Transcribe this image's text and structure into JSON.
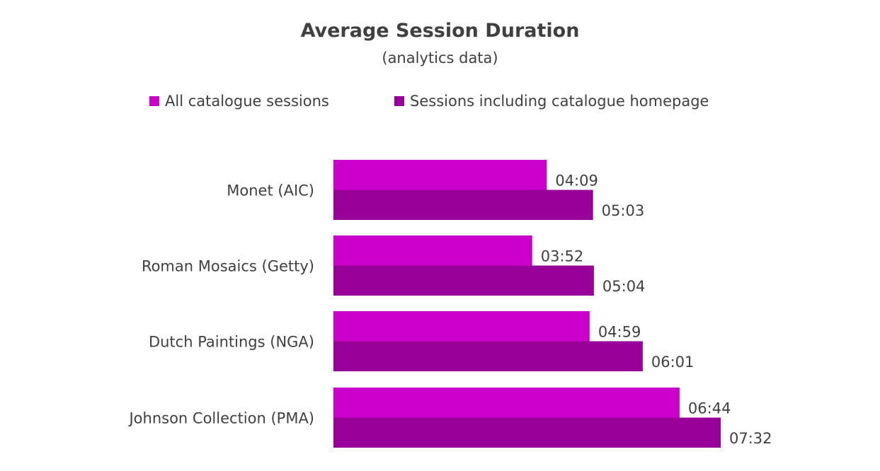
{
  "chart_data": {
    "type": "bar",
    "orientation": "horizontal",
    "title": "Average Session Duration",
    "subtitle": "(analytics data)",
    "categories": [
      "Monet (AIC)",
      "Roman Mosaics (Getty)",
      "Dutch Paintings (NGA)",
      "Johnson Collection (PMA)"
    ],
    "series": [
      {
        "name": "All catalogue sessions",
        "color": "#CC00CC",
        "values_seconds": [
          249,
          232,
          299,
          404
        ],
        "labels": [
          "04:09",
          "03:52",
          "04:59",
          "06:44"
        ]
      },
      {
        "name": "Sessions including catalogue homepage",
        "color": "#990099",
        "values_seconds": [
          303,
          304,
          361,
          452
        ],
        "labels": [
          "05:03",
          "05:04",
          "06:01",
          "07:32"
        ]
      }
    ],
    "xlim_seconds": [
      0,
      452
    ],
    "grid": false,
    "legend_position": "top"
  }
}
